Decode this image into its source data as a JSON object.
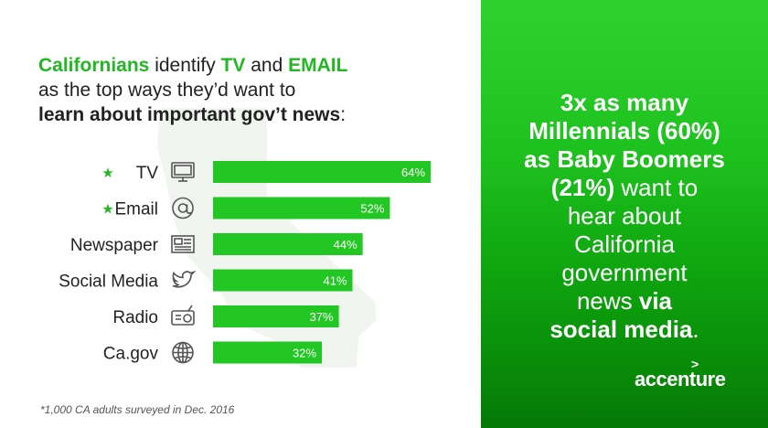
{
  "headline": {
    "l1_bold": "Californians",
    "l1_mid": " identify ",
    "l1_tv": "TV",
    "l1_and": " and ",
    "l1_email": "EMAIL",
    "l2": "as the top ways they’d want to",
    "l3_bold": "learn about important gov’t news",
    "l3_colon": ":"
  },
  "chart_data": {
    "type": "bar",
    "categories": [
      "TV",
      "Email",
      "Newspaper",
      "Social Media",
      "Radio",
      "Ca.gov"
    ],
    "values": [
      64,
      52,
      44,
      41,
      37,
      32
    ],
    "value_labels": [
      "64%",
      "52%",
      "44%",
      "41%",
      "37%",
      "32%"
    ],
    "starred": [
      true,
      true,
      false,
      false,
      false,
      false
    ],
    "icons": [
      "tv-icon",
      "at-icon",
      "newspaper-icon",
      "twitter-bird-icon",
      "radio-icon",
      "globe-icon"
    ],
    "orientation": "horizontal",
    "bar_color": "#23c723",
    "title": "",
    "xlabel": "",
    "ylabel": ""
  },
  "star_glyph": "★",
  "footnote": "*1,000 CA adults surveyed in Dec. 2016",
  "stat": {
    "l1": "3x as many",
    "l2": "Millennials (60%)",
    "l3": "as Baby Boomers",
    "l4_bold": "(21%)",
    "l4_rest": " want to",
    "l5": "hear about",
    "l6": "California",
    "l7": "government",
    "l8_rest": "news ",
    "l8_bold": "via",
    "l9_bold": "social media",
    "l9_end": "."
  },
  "brand": {
    "name": "accenture",
    "mark": ">"
  },
  "colors": {
    "accent": "#23b723",
    "panel_top": "#2fd12f",
    "panel_bottom": "#067a06"
  }
}
